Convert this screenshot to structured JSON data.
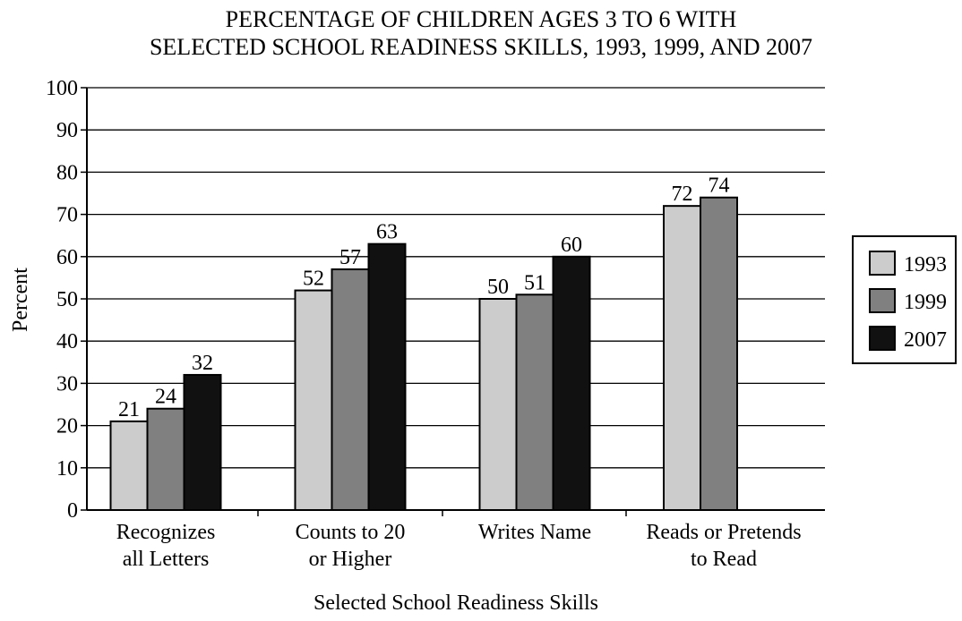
{
  "chart_data": {
    "type": "bar",
    "title_lines": [
      "PERCENTAGE OF CHILDREN AGES 3 TO 6 WITH",
      "SELECTED SCHOOL READINESS SKILLS, 1993, 1999, AND 2007"
    ],
    "xlabel": "Selected School Readiness Skills",
    "ylabel": "Percent",
    "ylim": [
      0,
      100
    ],
    "yticks": [
      0,
      10,
      20,
      30,
      40,
      50,
      60,
      70,
      80,
      90,
      100
    ],
    "grid": true,
    "legend_position": "right",
    "categories": [
      [
        "Recognizes",
        "all Letters"
      ],
      [
        "Counts to 20",
        "or Higher"
      ],
      [
        "Writes Name"
      ],
      [
        "Reads or Pretends",
        "to Read"
      ]
    ],
    "series": [
      {
        "name": "1993",
        "color": "#cccccc",
        "values": [
          21,
          52,
          50,
          72
        ]
      },
      {
        "name": "1999",
        "color": "#808080",
        "values": [
          24,
          57,
          51,
          74
        ]
      },
      {
        "name": "2007",
        "color": "#111111",
        "values": [
          32,
          63,
          60,
          null
        ]
      }
    ]
  }
}
